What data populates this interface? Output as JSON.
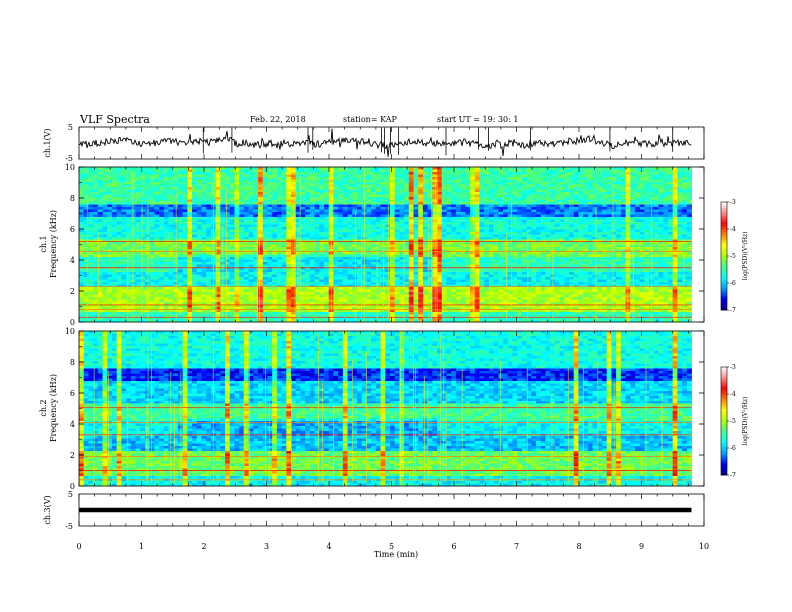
{
  "header": {
    "title": "VLF Spectra",
    "date": "Feb. 22, 2018",
    "station": "station= KAP",
    "start": "start  UT =   19: 30: 1"
  },
  "chart_data": [
    {
      "panel": "ch1-waveform",
      "type": "line",
      "ylabel": "ch.1(V)",
      "ylim": [
        -5,
        5
      ],
      "yticks": [
        "5",
        "-5"
      ],
      "xlim": [
        0,
        10
      ],
      "x_extent": [
        0,
        9.8
      ],
      "baseline": 0
    },
    {
      "panel": "ch1-spectrogram",
      "type": "heatmap",
      "ylabel": "ch.1",
      "ylabel2": "Frequency (kHz)",
      "ylim": [
        0,
        10
      ],
      "yticks": [
        "0",
        "2",
        "4",
        "6",
        "8",
        "10"
      ],
      "xlim": [
        0,
        10
      ],
      "x_extent": [
        0,
        9.8
      ],
      "colorbar": {
        "label": "log(PSD)(V²/Hz)",
        "range": [
          -7,
          -3
        ],
        "ticks": [
          "-3",
          "-4",
          "-5",
          "-6",
          "-7"
        ],
        "colors": [
          "#000080",
          "#0000ff",
          "#00a0ff",
          "#00ffff",
          "#40ff90",
          "#b0ff00",
          "#ffff00",
          "#ff8000",
          "#ff0000",
          "#ff9090",
          "#ffffff"
        ]
      }
    },
    {
      "panel": "ch2-spectrogram",
      "type": "heatmap",
      "ylabel": "ch.2",
      "ylabel2": "Frequency (kHz)",
      "ylim": [
        0,
        10
      ],
      "yticks": [
        "0",
        "2",
        "4",
        "6",
        "8",
        "10"
      ],
      "xlim": [
        0,
        10
      ],
      "x_extent": [
        0,
        9.8
      ],
      "colorbar": {
        "label": "log(PSD)(V²/Hz)",
        "range": [
          -7,
          -3
        ],
        "ticks": [
          "-3",
          "-4",
          "-5",
          "-6",
          "-7"
        ],
        "colors": [
          "#000080",
          "#0000ff",
          "#00a0ff",
          "#00ffff",
          "#40ff90",
          "#b0ff00",
          "#ffff00",
          "#ff8000",
          "#ff0000",
          "#ff9090",
          "#ffffff"
        ]
      }
    },
    {
      "panel": "ch3-waveform",
      "type": "line",
      "ylabel": "ch.3(V)",
      "ylim": [
        -5,
        5
      ],
      "yticks": [
        "5",
        "-5"
      ],
      "xlim": [
        0,
        10
      ],
      "x_extent": [
        0,
        9.8
      ],
      "baseline": 0
    }
  ],
  "xaxis": {
    "label": "Time (min)",
    "ticks": [
      "0",
      "1",
      "2",
      "3",
      "4",
      "5",
      "6",
      "7",
      "8",
      "9",
      "10"
    ]
  }
}
